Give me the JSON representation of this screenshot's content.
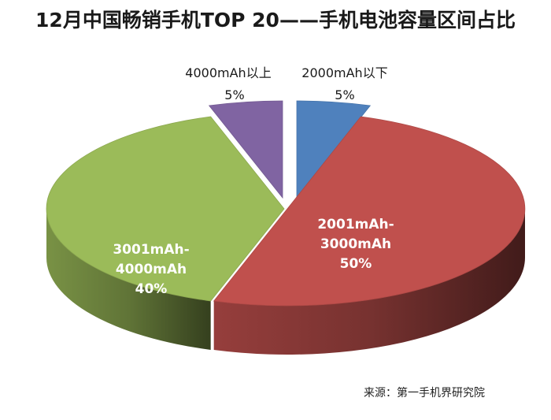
{
  "chart_data": {
    "type": "pie",
    "title": "12月中国畅销手机TOP 20——手机电池容量区间占比",
    "style": "3d-exploded",
    "slices": [
      {
        "label": "2000mAh以下",
        "value": 5,
        "value_label": "5%",
        "color": "#4f81bd",
        "label_placement": "outside"
      },
      {
        "label": "2001mAh-3000mAh",
        "label_lines": [
          "2001mAh-",
          "3000mAh"
        ],
        "value": 50,
        "value_label": "50%",
        "color": "#c0504d",
        "label_placement": "inside"
      },
      {
        "label": "3001mAh-4000mAh",
        "label_lines": [
          "3001mAh-",
          "4000mAh"
        ],
        "value": 40,
        "value_label": "40%",
        "color": "#9bbb59",
        "label_placement": "inside"
      },
      {
        "label": "4000mAh以上",
        "value": 5,
        "value_label": "5%",
        "color": "#8064a2",
        "label_placement": "outside"
      }
    ]
  },
  "source_note": "来源：第一手机界研究院"
}
